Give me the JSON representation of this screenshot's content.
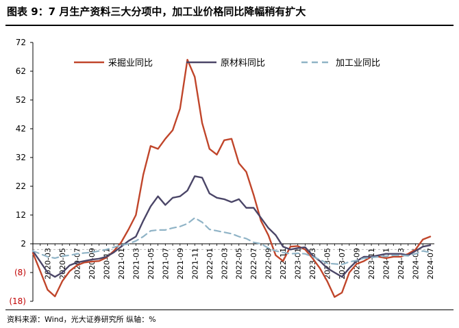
{
  "header": {
    "title": "图表 9：7 月生产资料三大分项中，加工业价格同比降幅稍有扩大"
  },
  "footer": {
    "source": "资料来源：Wind，光大证券研究所   纵轴：%"
  },
  "colors": {
    "mining": "#C0452A",
    "raw": "#4A4567",
    "processing": "#8FB3C6",
    "axis": "#000000",
    "ref_line": "#b5b5b5",
    "tick_label_negative": "#C00000"
  },
  "chart_data": {
    "type": "line",
    "title": "",
    "xlabel": "",
    "ylabel": "",
    "ylim": [
      -18,
      72
    ],
    "yticks": [
      72,
      62,
      52,
      42,
      32,
      22,
      12,
      2,
      -8,
      -18
    ],
    "ytick_labels": [
      "72",
      "62",
      "52",
      "42",
      "32",
      "22",
      "12",
      "2",
      "(8)",
      "(18)"
    ],
    "grid": false,
    "legend_position": "top",
    "x_tick_labels": [
      "2020-03",
      "2020-05",
      "2020-07",
      "2020-09",
      "2020-11",
      "2021-01",
      "2021-03",
      "2021-05",
      "2021-07",
      "2021-09",
      "2021-11",
      "2022-01",
      "2022-03",
      "2022-05",
      "2022-07",
      "2022-09",
      "2022-11",
      "2023-01",
      "2023-03",
      "2023-05",
      "2023-07",
      "2023-09",
      "2023-11",
      "2024-01",
      "2024-03",
      "2024-05",
      "2024-07"
    ],
    "x": [
      "2020-01",
      "2020-02",
      "2020-03",
      "2020-04",
      "2020-05",
      "2020-06",
      "2020-07",
      "2020-08",
      "2020-09",
      "2020-10",
      "2020-11",
      "2020-12",
      "2021-01",
      "2021-02",
      "2021-03",
      "2021-04",
      "2021-05",
      "2021-06",
      "2021-07",
      "2021-08",
      "2021-09",
      "2021-10",
      "2021-11",
      "2021-12",
      "2022-01",
      "2022-02",
      "2022-03",
      "2022-04",
      "2022-05",
      "2022-06",
      "2022-07",
      "2022-08",
      "2022-09",
      "2022-10",
      "2022-11",
      "2022-12",
      "2023-01",
      "2023-02",
      "2023-03",
      "2023-04",
      "2023-05",
      "2023-06",
      "2023-07",
      "2023-08",
      "2023-09",
      "2023-10",
      "2023-11",
      "2023-12",
      "2024-01",
      "2024-02",
      "2024-03",
      "2024-04",
      "2024-05",
      "2024-06",
      "2024-07"
    ],
    "series": [
      {
        "name": "采掘业同比",
        "color": "#C0452A",
        "dash": "solid",
        "values": [
          -1.2,
          -7.5,
          -14,
          -16.3,
          -11,
          -7.5,
          -5.5,
          -4.5,
          -4.2,
          -4,
          -2.8,
          -0.5,
          2.5,
          7,
          12,
          26,
          36,
          35,
          38.5,
          41.5,
          49,
          66,
          60,
          44,
          35,
          33,
          38,
          38.5,
          30,
          27,
          19,
          10,
          5,
          -2,
          -4,
          1,
          1.2,
          0,
          -3,
          -6.5,
          -11,
          -16.5,
          -15,
          -8,
          -5,
          -4,
          -2.5,
          -2.5,
          -3,
          -2.5,
          -2.5,
          -1.5,
          0,
          3.5,
          4.5
        ]
      },
      {
        "name": "原材料同比",
        "color": "#4A4567",
        "dash": "solid",
        "values": [
          -0.5,
          -4.2,
          -8,
          -9.5,
          -8,
          -5.5,
          -4.5,
          -4,
          -3.5,
          -3.2,
          -2.5,
          -1,
          1,
          3,
          4.5,
          10,
          15,
          18.5,
          15.5,
          18,
          18.5,
          20.5,
          25.5,
          25,
          19.5,
          18,
          17.5,
          16.5,
          17.5,
          14.5,
          14.5,
          11,
          7.5,
          5,
          1,
          0,
          0.5,
          0.8,
          -2,
          -4,
          -6.5,
          -8,
          -9.5,
          -6.5,
          -4,
          -2.5,
          -2.5,
          -2,
          -1.5,
          -1.5,
          -1.5,
          -2,
          -0.5,
          1,
          1.5
        ]
      },
      {
        "name": "加工业同比",
        "color": "#8FB3C6",
        "dash": "dash",
        "values": [
          -0.5,
          -1.5,
          -2.5,
          -3,
          -2.3,
          -2,
          -1.5,
          -1.2,
          -1,
          -0.5,
          0,
          0.8,
          1.5,
          2,
          3,
          4.5,
          6.5,
          6.8,
          6.8,
          7.5,
          8,
          9,
          11,
          9.5,
          7,
          6.5,
          6,
          5.5,
          4.5,
          3.8,
          2.5,
          2,
          0.5,
          -0.5,
          -1,
          -1.5,
          -1.3,
          -1.5,
          -2.5,
          -3.5,
          -4.8,
          -5,
          -5.2,
          -4.3,
          -3.8,
          -3,
          -2.8,
          -2.5,
          -2.3,
          -2,
          -2,
          -2.2,
          -1.5,
          -0.5,
          -1
        ]
      }
    ]
  }
}
